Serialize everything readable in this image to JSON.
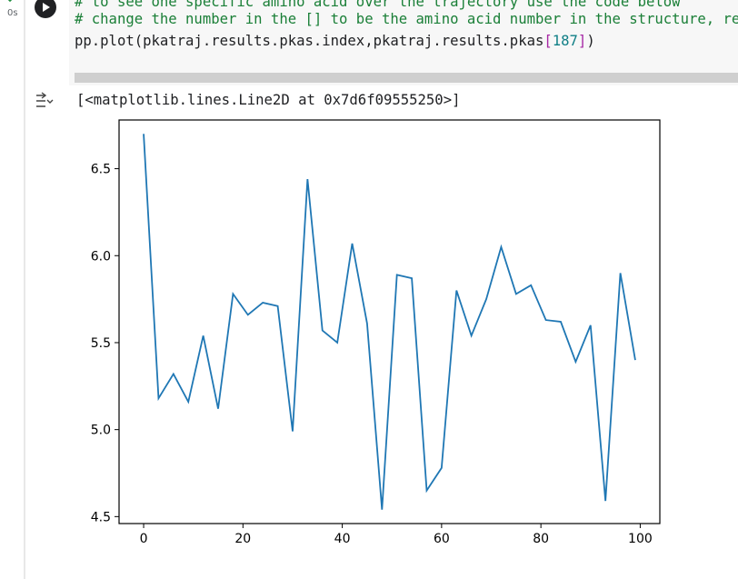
{
  "cell": {
    "status": "0s",
    "code_lines": [
      {
        "kind": "comment",
        "text": "# to see one specific amino acid over the trajectory use the code below"
      },
      {
        "kind": "comment",
        "text": "# change the number in the [] to be the amino acid number in the structure, rem"
      },
      {
        "kind": "code",
        "prefix": "pp.plot(pkatraj.results.pkas.index,pkatraj.results.pkas",
        "bracket_open": "[",
        "index": "187",
        "bracket_close": "]",
        "suffix": ")"
      }
    ]
  },
  "output": {
    "text": "[<matplotlib.lines.Line2D at 0x7d6f09555250>]"
  },
  "colors": {
    "line": "#1f77b4",
    "comment": "#1a7f37",
    "code_bg": "#f7f7f7"
  },
  "icons": {
    "run": "play-icon",
    "output": "output-toggle-icon",
    "status": "check-icon"
  },
  "chart_data": {
    "type": "line",
    "title": "",
    "xlabel": "",
    "ylabel": "",
    "xlim": [
      -4.95,
      103.95
    ],
    "ylim": [
      4.46,
      6.78
    ],
    "xticks": [
      0,
      20,
      40,
      60,
      80,
      100
    ],
    "xtick_labels": [
      "0",
      "20",
      "40",
      "60",
      "80",
      "100"
    ],
    "yticks": [
      4.5,
      5.0,
      5.5,
      6.0,
      6.5
    ],
    "ytick_labels": [
      "4.5",
      "5.0",
      "5.5",
      "6.0",
      "6.5"
    ],
    "grid": false,
    "series": [
      {
        "x": [
          0,
          3,
          6,
          9,
          12,
          15,
          18,
          21,
          24,
          27,
          30,
          33,
          36,
          39,
          42,
          45,
          48,
          51,
          54,
          57,
          60,
          63,
          66,
          69,
          72,
          75,
          78,
          81,
          84,
          87,
          90,
          93,
          96,
          99
        ],
        "values": [
          6.7,
          5.18,
          5.32,
          5.16,
          5.54,
          5.12,
          5.78,
          5.66,
          5.73,
          5.71,
          4.99,
          6.44,
          5.57,
          5.5,
          6.07,
          5.61,
          4.54,
          5.89,
          5.87,
          4.65,
          4.78,
          5.8,
          5.54,
          5.75,
          6.05,
          5.78,
          5.83,
          5.63,
          5.62,
          5.39,
          5.6,
          4.59,
          5.9,
          5.4
        ]
      }
    ]
  }
}
